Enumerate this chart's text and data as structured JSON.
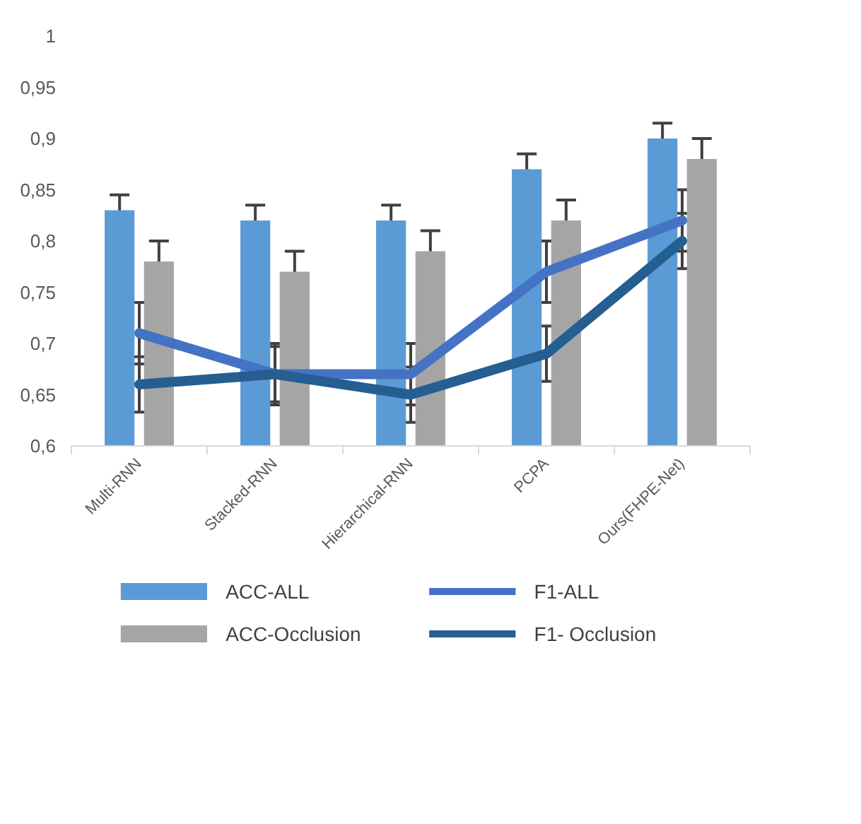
{
  "chart_data": {
    "type": "bar",
    "categories": [
      "Multi-RNN",
      "Stacked-RNN",
      "Hierarchical-RNN",
      "PCPA",
      "Ours(FHPE-Net)"
    ],
    "series": [
      {
        "name": "ACC-ALL",
        "color": "#5b9bd5",
        "values": [
          0.83,
          0.82,
          0.82,
          0.87,
          0.9
        ],
        "errors": [
          0.015,
          0.015,
          0.015,
          0.015,
          0.015
        ]
      },
      {
        "name": "ACC-Occlusion",
        "color": "#a5a5a5",
        "values": [
          0.78,
          0.77,
          0.79,
          0.82,
          0.88
        ],
        "errors": [
          0.02,
          0.02,
          0.02,
          0.02,
          0.02
        ]
      },
      {
        "name": "F1-ALL",
        "type": "line",
        "color": "#4472c4",
        "values": [
          0.71,
          0.67,
          0.67,
          0.77,
          0.82
        ],
        "errors": [
          0.03,
          0.03,
          0.03,
          0.03,
          0.03
        ]
      },
      {
        "name": "F1- Occlusion",
        "type": "line",
        "color": "#255e91",
        "values": [
          0.66,
          0.67,
          0.65,
          0.69,
          0.8
        ],
        "errors": [
          0.027,
          0.027,
          0.027,
          0.027,
          0.027
        ]
      }
    ],
    "ylim": [
      0.6,
      1
    ],
    "yticks": [
      {
        "value": 0.6,
        "label": "0,6"
      },
      {
        "value": 0.65,
        "label": "0,65"
      },
      {
        "value": 0.7,
        "label": "0,7"
      },
      {
        "value": 0.75,
        "label": "0,75"
      },
      {
        "value": 0.8,
        "label": "0,8"
      },
      {
        "value": 0.85,
        "label": "0,85"
      },
      {
        "value": 0.9,
        "label": "0,9"
      },
      {
        "value": 0.95,
        "label": "0,95"
      },
      {
        "value": 1,
        "label": "1"
      }
    ],
    "grid": false,
    "legend": "bottom"
  }
}
